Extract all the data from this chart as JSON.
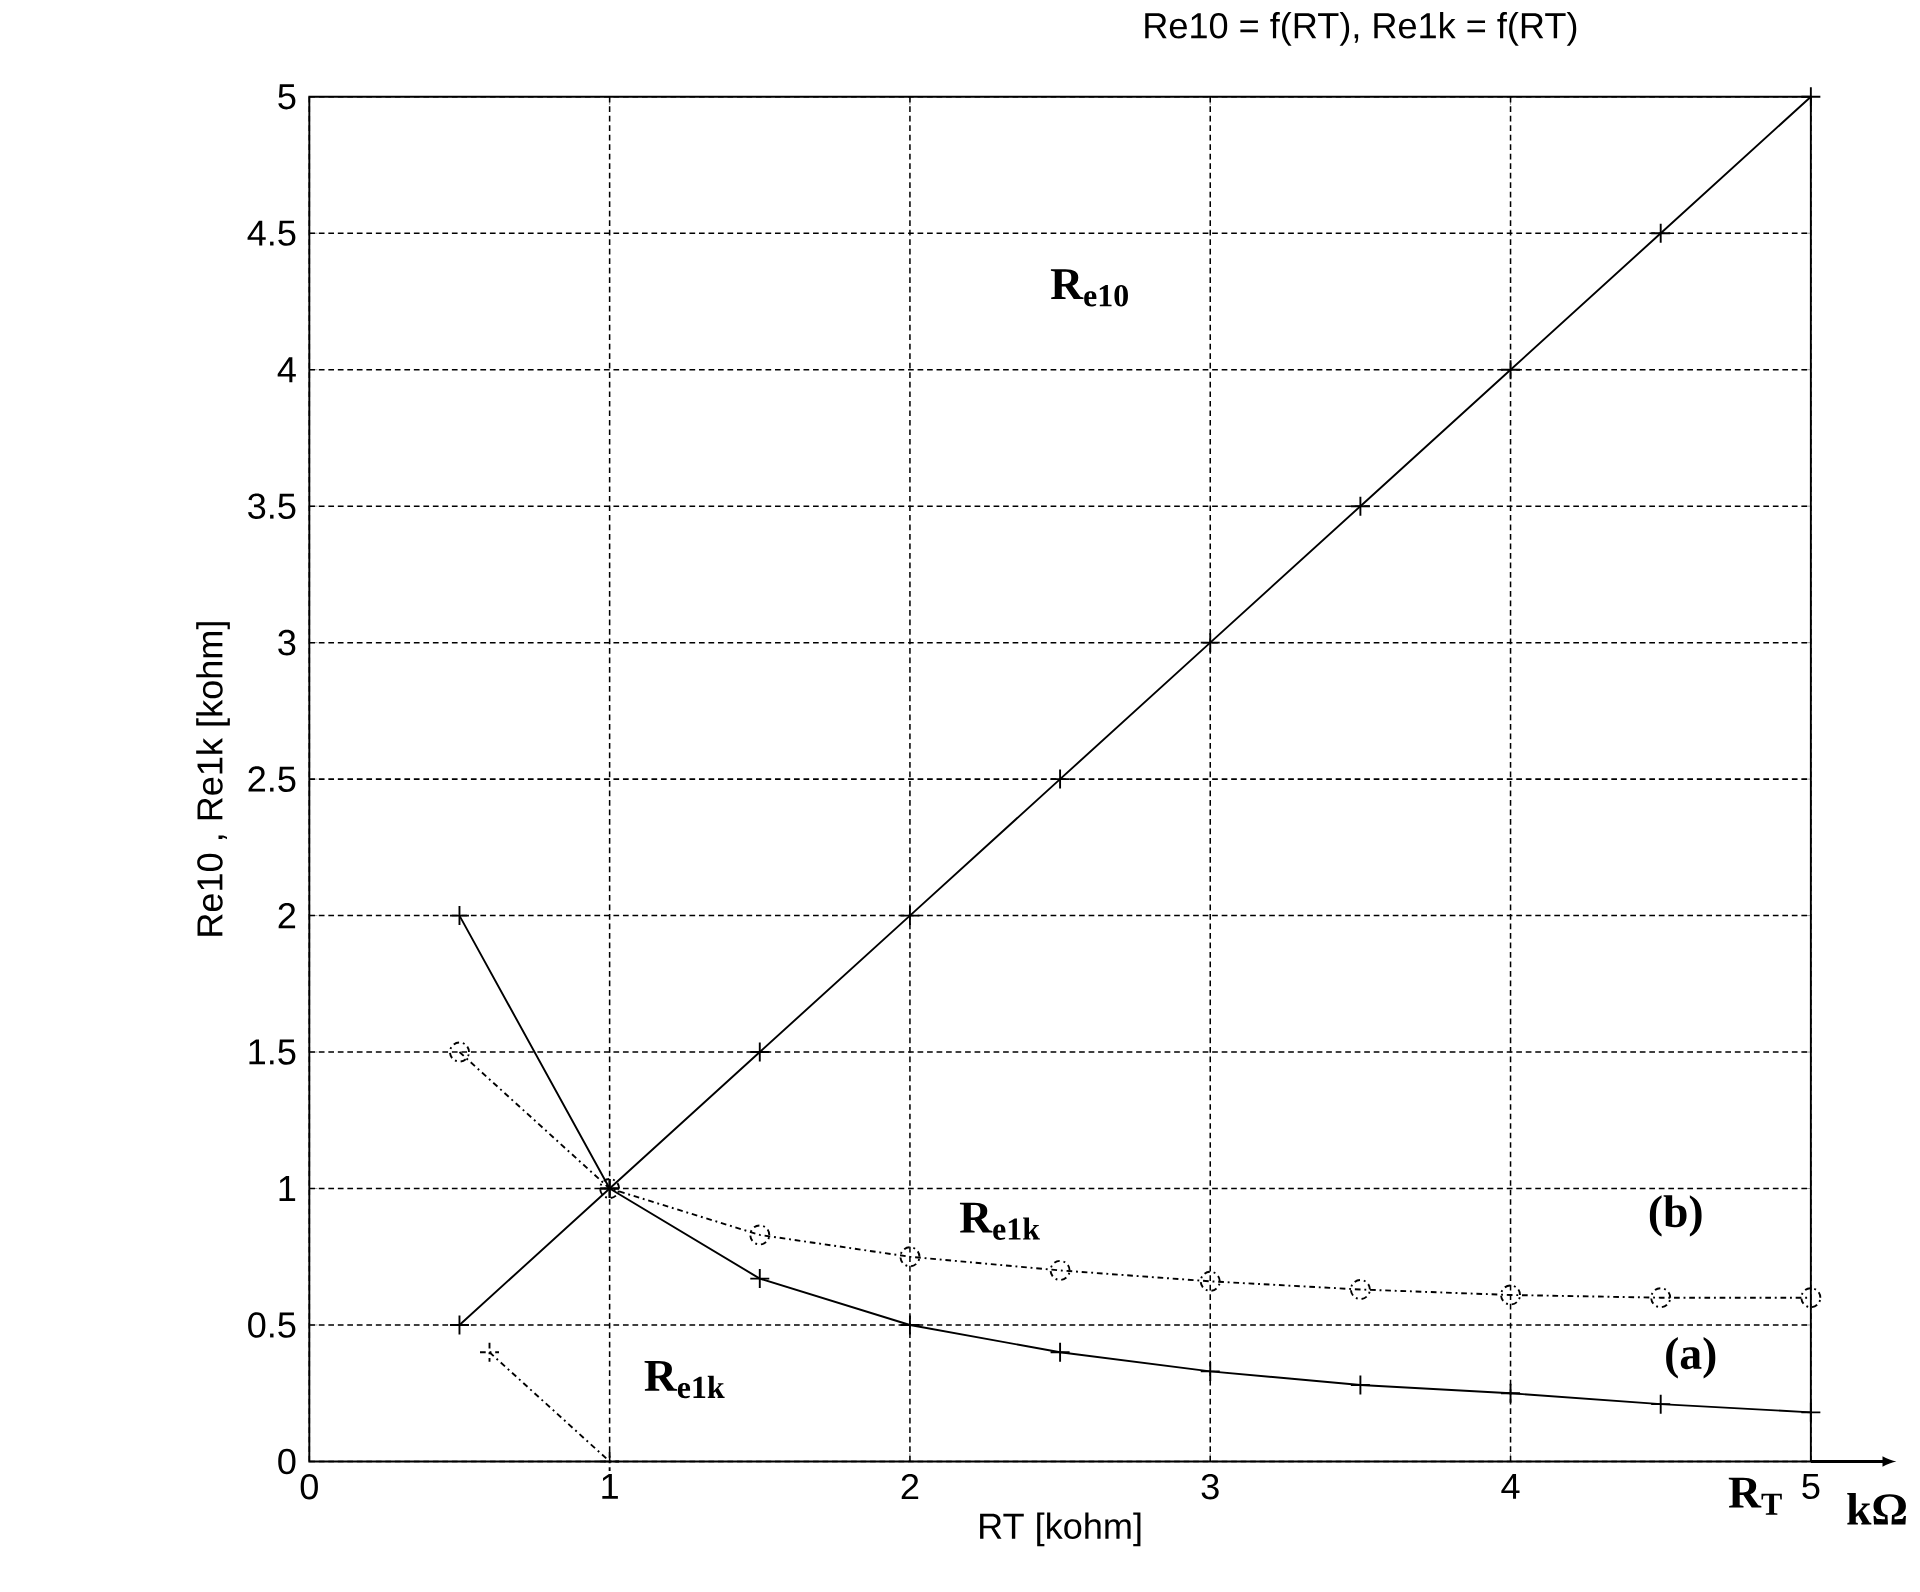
{
  "chart_data": {
    "type": "line",
    "title": "Re10 = f(RT),     Re1k = f(RT)",
    "xlabel": "RT [kohm]",
    "ylabel": "Re10 , Re1k [kohm]",
    "xlim": [
      0,
      5
    ],
    "ylim": [
      0,
      5
    ],
    "xticks": [
      0,
      1,
      2,
      3,
      4,
      5
    ],
    "yticks": [
      0,
      0.5,
      1,
      1.5,
      2,
      2.5,
      3,
      3.5,
      4,
      4.5,
      5
    ],
    "grid": true,
    "series": [
      {
        "color": "#000000",
        "marker": "cross",
        "line_style": "solid",
        "x": [
          0.5,
          1,
          1.5,
          2,
          2.5,
          3,
          3.5,
          4,
          4.5,
          5
        ],
        "values": [
          0.5,
          1,
          1.5,
          2,
          2.5,
          3,
          3.5,
          4,
          4.5,
          5
        ]
      },
      {
        "color": "#000000",
        "marker": "cross",
        "line_style": "solid",
        "x": [
          0.5,
          1,
          1.5,
          2,
          2.5,
          3,
          3.5,
          4,
          4.5,
          5
        ],
        "values": [
          2,
          1,
          0.67,
          0.5,
          0.4,
          0.33,
          0.28,
          0.25,
          0.21,
          0.18
        ]
      },
      {
        "color": "#000000",
        "marker": "circle",
        "line_style": "dashed",
        "x": [
          0.5,
          1,
          1.5,
          2,
          2.5,
          3,
          3.5,
          4,
          4.5,
          5
        ],
        "values": [
          1.5,
          1,
          0.83,
          0.75,
          0.7,
          0.66,
          0.63,
          0.61,
          0.6,
          0.6
        ]
      },
      {
        "color": "#000000",
        "marker": "cross",
        "line_style": "dashed",
        "x": [
          0.6,
          1
        ],
        "values": [
          0.4,
          0
        ]
      }
    ],
    "annotations": [
      "R$_{e10}$",
      "R$_{e1k}$",
      "R$_{e1k}$",
      "(b)",
      "(a)",
      "R$_{T}$",
      "kΩ"
    ]
  }
}
